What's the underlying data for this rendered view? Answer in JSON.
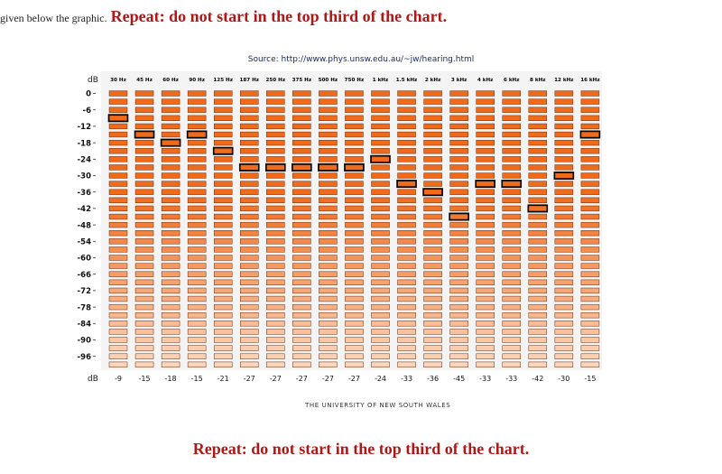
{
  "page": {
    "intro_text": "given below the graphic.",
    "warning_top": "Repeat: do not start in the top third of the chart.",
    "warning_bottom": "Repeat: do not start in the top third of the chart.",
    "source": "Source: http://www.phys.unsw.edu.au/~jw/hearing.html",
    "footer": "THE UNIVERSITY OF NEW SOUTH WALES"
  },
  "chart_data": {
    "type": "table",
    "title": "",
    "xlabel": "",
    "ylabel": "dB",
    "bottom_row_label": "dB",
    "categories": [
      "30 Hz",
      "45 Hz",
      "60 Hz",
      "90 Hz",
      "125 Hz",
      "187 Hz",
      "250 Hz",
      "375 Hz",
      "500 Hz",
      "750 Hz",
      "1 kHz",
      "1.5 kHz",
      "2 kHz",
      "3 kHz",
      "4 kHz",
      "6 kHz",
      "8 kHz",
      "12 kHz",
      "16 kHz"
    ],
    "y_ticks": [
      "0",
      "-6",
      "-12",
      "-18",
      "-24",
      "-30",
      "-36",
      "-42",
      "-48",
      "-54",
      "-60",
      "-66",
      "-72",
      "-78",
      "-84",
      "-90",
      "-96"
    ],
    "ylim": [
      -99,
      0
    ],
    "level_step": 3,
    "values": [
      -9,
      -15,
      -18,
      -15,
      -21,
      -27,
      -27,
      -27,
      -27,
      -27,
      -24,
      -33,
      -36,
      -45,
      -33,
      -33,
      -42,
      -30,
      -15
    ],
    "value_labels": [
      "-9",
      "-15",
      "-18",
      "-15",
      "-21",
      "-27",
      "-27",
      "-27",
      "-27",
      "-27",
      "-24",
      "-33",
      "-36",
      "-45",
      "-33",
      "-33",
      "-42",
      "-30",
      "-15"
    ],
    "colors": {
      "cell_top": "#f06a1c",
      "cell_bottom": "#fcd6bc",
      "selected_border": "#000000",
      "panel": "#f4f4f4"
    }
  }
}
